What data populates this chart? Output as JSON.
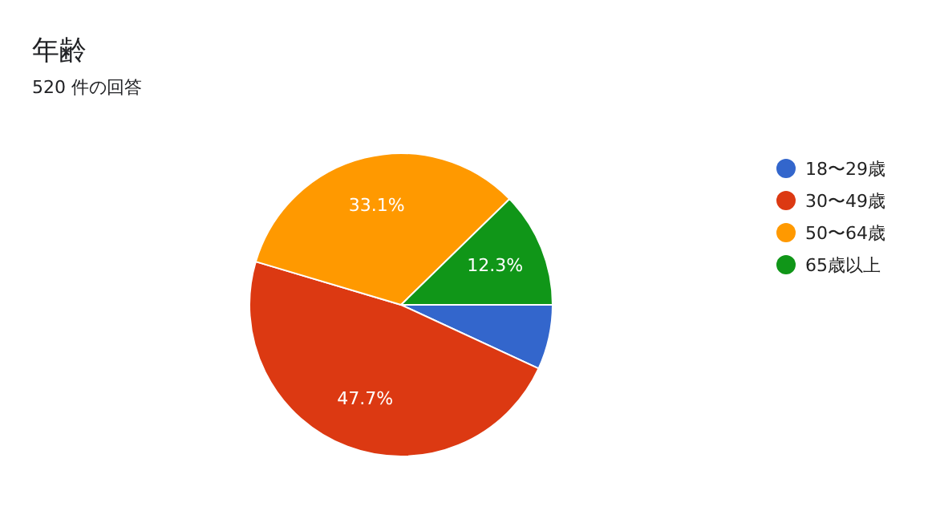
{
  "chart_data": {
    "type": "pie",
    "title": "年齢",
    "subtitle": "520 件の回答",
    "categories": [
      "18〜29歳",
      "30〜49歳",
      "50〜64歳",
      "65歳以上"
    ],
    "values": [
      6.9,
      47.7,
      33.1,
      12.3
    ],
    "value_labels": [
      null,
      "47.7%",
      "33.1%",
      "12.3%"
    ],
    "colors": [
      "#3366cc",
      "#dc3912",
      "#ff9900",
      "#109618"
    ],
    "legend": "right"
  }
}
